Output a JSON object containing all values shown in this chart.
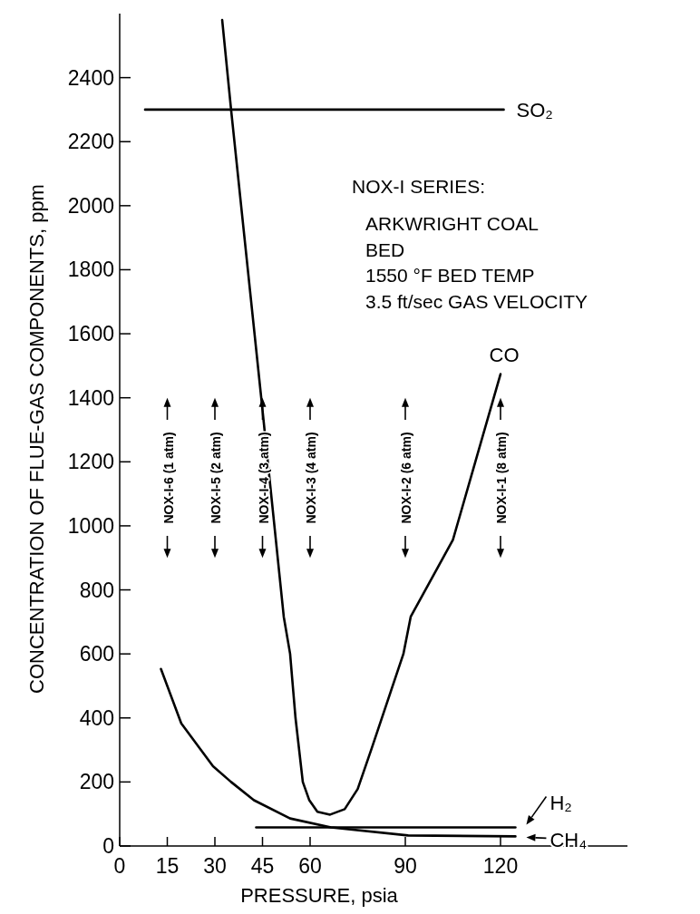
{
  "chart_data": {
    "type": "line",
    "xlabel": "PRESSURE, psia",
    "ylabel": "CONCENTRATION OF FLUE-GAS COMPONENTS, ppm",
    "xlim": [
      0,
      160
    ],
    "ylim": [
      0,
      2600
    ],
    "xticks": [
      0,
      15,
      30,
      45,
      60,
      90,
      120
    ],
    "yticks": [
      0,
      200,
      400,
      600,
      800,
      1000,
      1200,
      1400,
      1600,
      1800,
      2000,
      2200,
      2400
    ],
    "grid": false,
    "legend": "bottom right",
    "marker": "none",
    "line_style": "solid",
    "series": [
      {
        "name": "SO₂",
        "color": "#000000",
        "x": [
          8,
          121
        ],
        "values": [
          2300,
          2300
        ]
      },
      {
        "name": "CO",
        "color": "#000000",
        "x": [
          32.3,
          35.1,
          44.6,
          51.7,
          53.7,
          55.4,
          57.7,
          59.7,
          62.3,
          66.3,
          70.9,
          75,
          79.4,
          89.4,
          91.7,
          105,
          120
        ],
        "values": [
          2580,
          2300,
          1400,
          716,
          600,
          400,
          200,
          144,
          107,
          98,
          115,
          178,
          305,
          600,
          716,
          956,
          1474
        ]
      },
      {
        "name": "H₂",
        "color": "#000000",
        "x": [
          43,
          124.7
        ],
        "values": [
          58,
          58
        ]
      },
      {
        "name": "CH₄",
        "color": "#000000",
        "x": [
          13,
          19.4,
          29.4,
          35.1,
          42.3,
          53.7,
          66.6,
          90.9,
          124.7
        ],
        "values": [
          553,
          383,
          249,
          200,
          143,
          86,
          58,
          33,
          30
        ]
      }
    ],
    "annotations": [
      "NOX-I SERIES:",
      "ARKWRIGHT COAL",
      "BED",
      "1550 °F BED TEMP",
      "3.5 ft/sec GAS VELOCITY",
      "NOX-I-6 (1 atm)",
      "NOX-I-5 (2 atm)",
      "NOX-I-4 (3 atm)",
      "NOX-I-3 (4 atm)",
      "NOX-I-2 (6 atm)",
      "NOX-I-1 (8 atm)"
    ]
  }
}
